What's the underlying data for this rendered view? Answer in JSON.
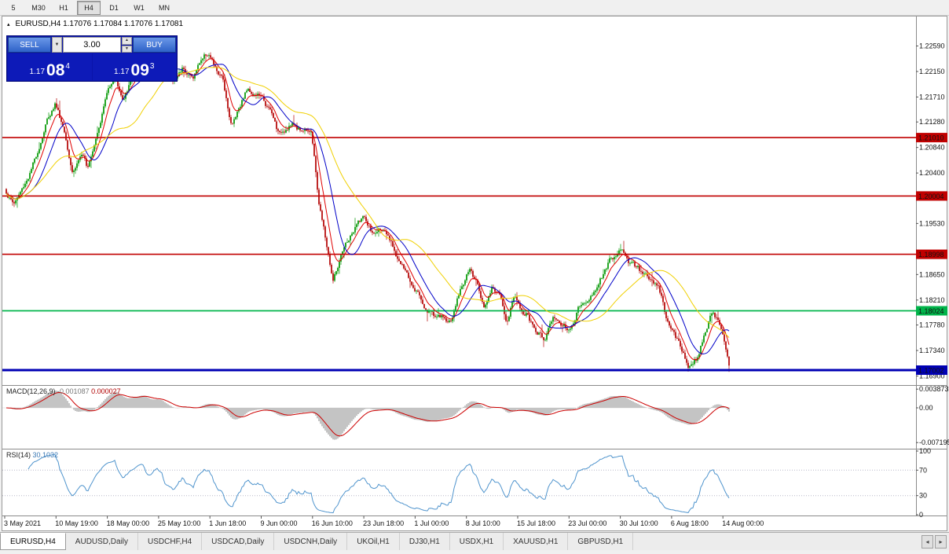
{
  "toolbar": {
    "timeframes": [
      {
        "label": "5"
      },
      {
        "label": "M30"
      },
      {
        "label": "H1"
      },
      {
        "label": "H4",
        "active": true
      },
      {
        "label": "D1"
      },
      {
        "label": "W1"
      },
      {
        "label": "MN"
      }
    ]
  },
  "chart": {
    "collapse_icon": "▴",
    "symbol_label": "EURUSD,H4 1.17076 1.17084 1.17076 1.17081"
  },
  "one_click": {
    "sell_label": "SELL",
    "buy_label": "BUY",
    "volume": "3.00",
    "dropdown_icon": "▼",
    "spin_up_icon": "▲",
    "spin_down_icon": "▼",
    "sell_price": {
      "prefix": "1.17",
      "big": "08",
      "sup": "4"
    },
    "buy_price": {
      "prefix": "1.17",
      "big": "09",
      "sup": "3"
    }
  },
  "price_axis": {
    "labels": [
      "1.22590",
      "1.22150",
      "1.21710",
      "1.21280",
      "1.20840",
      "1.20400",
      "1.19530",
      "1.18650",
      "1.18210",
      "1.17780",
      "1.17340",
      "1.16900"
    ]
  },
  "hlines": [
    {
      "price": 1.2101,
      "label": "1.21010",
      "color": "#c00000",
      "width": 1.6
    },
    {
      "price": 1.20004,
      "label": "1.20004",
      "color": "#c00000",
      "width": 1.6
    },
    {
      "price": 1.18998,
      "label": "1.18998",
      "color": "#c00000",
      "width": 1.6
    },
    {
      "price": 1.18024,
      "label": "1.18024",
      "color": "#00b44a",
      "width": 1.8
    },
    {
      "price": 1.17002,
      "label": "1.17002",
      "color": "#0000b4",
      "width": 3
    }
  ],
  "macd": {
    "name": "MACD(12,26,9)",
    "value_main": "-0.001087",
    "value_signal": "0.000027",
    "axis_labels": [
      {
        "text": "0.003873",
        "value": 0.003873
      },
      {
        "text": "0.00",
        "value": 0
      },
      {
        "text": "-0.007195",
        "value": -0.007195
      }
    ]
  },
  "rsi": {
    "name": "RSI(14)",
    "value": "30.1032",
    "levels": [
      70,
      30
    ],
    "axis_labels": [
      {
        "text": "100",
        "value": 100
      },
      {
        "text": "70",
        "value": 70
      },
      {
        "text": "30",
        "value": 30
      },
      {
        "text": "0",
        "value": 0
      }
    ]
  },
  "time_axis": {
    "labels": [
      "3 May 2021",
      "10 May 19:00",
      "18 May 00:00",
      "25 May 10:00",
      "1 Jun 18:00",
      "9 Jun 00:00",
      "16 Jun 10:00",
      "23 Jun 18:00",
      "1 Jul 00:00",
      "8 Jul 10:00",
      "15 Jul 18:00",
      "23 Jul 00:00",
      "30 Jul 10:00",
      "6 Aug 18:00",
      "14 Aug 00:00"
    ]
  },
  "tabs": [
    {
      "label": "EURUSD,H4",
      "active": true
    },
    {
      "label": "AUDUSD,Daily"
    },
    {
      "label": "USDCHF,H4"
    },
    {
      "label": "USDCAD,Daily"
    },
    {
      "label": "USDCNH,Daily"
    },
    {
      "label": "UKOil,H1"
    },
    {
      "label": "DJ30,H1"
    },
    {
      "label": "USDX,H1"
    },
    {
      "label": "XAUUSD,H1"
    },
    {
      "label": "GBPUSD,H1"
    }
  ],
  "tab_scroll": {
    "left": "◂",
    "right": "▸"
  },
  "chart_data": {
    "type": "candlestick",
    "symbol": "EURUSD",
    "timeframe": "H4",
    "last_ohlc": {
      "open": 1.17076,
      "high": 1.17084,
      "low": 1.17076,
      "close": 1.17081
    },
    "last_close": 1.17081,
    "candle_count": 461,
    "seed": 1337,
    "noise_amp": 0.0011,
    "price_range": {
      "top": 1.2298,
      "bottom": 1.1674
    },
    "hline_prices": [
      1.2101,
      1.20004,
      1.18998,
      1.18024,
      1.17002
    ],
    "colors": {
      "candle_up": "#009600",
      "candle_down": "#b30000",
      "macd_hist": "#c4c4c4",
      "macd_signal": "#cc0000",
      "rsi_line": "#4f94cd"
    },
    "moving_averages": [
      {
        "name": "fast",
        "type": "ema",
        "period": 8,
        "color": "#e00000"
      },
      {
        "name": "mid",
        "type": "sma",
        "period": 18,
        "color": "#0000c8"
      },
      {
        "name": "slow",
        "type": "sma",
        "period": 44,
        "color": "#f0d000"
      }
    ],
    "macd_params": {
      "fast": 12,
      "slow": 26,
      "signal": 9
    },
    "rsi_params": {
      "period": 14
    },
    "price_path_keyframes": [
      [
        0.0,
        1.2008
      ],
      [
        0.01,
        1.1988
      ],
      [
        0.022,
        1.2012
      ],
      [
        0.04,
        1.2062
      ],
      [
        0.055,
        1.213
      ],
      [
        0.068,
        1.2165
      ],
      [
        0.08,
        1.2118
      ],
      [
        0.092,
        1.2052
      ],
      [
        0.103,
        1.2078
      ],
      [
        0.112,
        1.205
      ],
      [
        0.125,
        1.2118
      ],
      [
        0.138,
        1.218
      ],
      [
        0.15,
        1.2218
      ],
      [
        0.162,
        1.2165
      ],
      [
        0.175,
        1.2205
      ],
      [
        0.188,
        1.2232
      ],
      [
        0.2,
        1.2215
      ],
      [
        0.209,
        1.225
      ],
      [
        0.22,
        1.2218
      ],
      [
        0.232,
        1.2196
      ],
      [
        0.245,
        1.2225
      ],
      [
        0.258,
        1.2206
      ],
      [
        0.27,
        1.2238
      ],
      [
        0.28,
        1.225
      ],
      [
        0.29,
        1.2216
      ],
      [
        0.3,
        1.2196
      ],
      [
        0.312,
        1.2122
      ],
      [
        0.322,
        1.2158
      ],
      [
        0.332,
        1.2188
      ],
      [
        0.35,
        1.2178
      ],
      [
        0.365,
        1.2146
      ],
      [
        0.378,
        1.2102
      ],
      [
        0.392,
        1.2128
      ],
      [
        0.408,
        1.2116
      ],
      [
        0.422,
        1.2122
      ],
      [
        0.432,
        1.1996
      ],
      [
        0.442,
        1.1924
      ],
      [
        0.452,
        1.1854
      ],
      [
        0.462,
        1.1888
      ],
      [
        0.475,
        1.1922
      ],
      [
        0.493,
        1.1962
      ],
      [
        0.508,
        1.1928
      ],
      [
        0.52,
        1.1944
      ],
      [
        0.532,
        1.1912
      ],
      [
        0.545,
        1.1886
      ],
      [
        0.558,
        1.1852
      ],
      [
        0.568,
        1.1846
      ],
      [
        0.58,
        1.1812
      ],
      [
        0.592,
        1.18
      ],
      [
        0.605,
        1.1788
      ],
      [
        0.615,
        1.1782
      ],
      [
        0.628,
        1.1838
      ],
      [
        0.64,
        1.1874
      ],
      [
        0.652,
        1.1846
      ],
      [
        0.662,
        1.1812
      ],
      [
        0.672,
        1.1854
      ],
      [
        0.682,
        1.183
      ],
      [
        0.692,
        1.1778
      ],
      [
        0.702,
        1.1828
      ],
      [
        0.712,
        1.1812
      ],
      [
        0.722,
        1.18
      ],
      [
        0.732,
        1.1765
      ],
      [
        0.744,
        1.1756
      ],
      [
        0.756,
        1.1792
      ],
      [
        0.768,
        1.1782
      ],
      [
        0.778,
        1.1772
      ],
      [
        0.79,
        1.1808
      ],
      [
        0.803,
        1.1825
      ],
      [
        0.818,
        1.1848
      ],
      [
        0.832,
        1.1885
      ],
      [
        0.849,
        1.1906
      ],
      [
        0.862,
        1.1888
      ],
      [
        0.876,
        1.187
      ],
      [
        0.89,
        1.1856
      ],
      [
        0.904,
        1.183
      ],
      [
        0.919,
        1.176
      ],
      [
        0.932,
        1.1736
      ],
      [
        0.944,
        1.1712
      ],
      [
        0.955,
        1.1726
      ],
      [
        0.966,
        1.1772
      ],
      [
        0.976,
        1.1806
      ],
      [
        0.986,
        1.179
      ],
      [
        0.993,
        1.1746
      ],
      [
        1.0,
        1.1706
      ]
    ]
  }
}
